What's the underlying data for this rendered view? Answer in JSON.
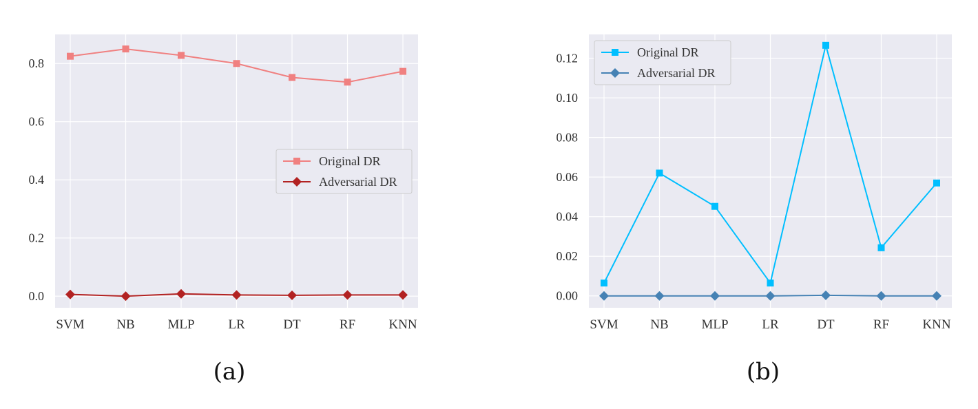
{
  "chart_data": [
    {
      "type": "line",
      "panel_label": "(a)",
      "categories": [
        "SVM",
        "NB",
        "MLP",
        "LR",
        "DT",
        "RF",
        "KNN"
      ],
      "ylim": [
        -0.04,
        0.9
      ],
      "yticks": [
        0.0,
        0.2,
        0.4,
        0.6,
        0.8
      ],
      "ytick_labels": [
        "0.0",
        "0.2",
        "0.4",
        "0.6",
        "0.8"
      ],
      "grid": true,
      "legend_placement": "center-right",
      "background_color": "#eaeaf2",
      "series": [
        {
          "name": "Original DR",
          "marker": "square",
          "color": "#f08080",
          "values": [
            0.825,
            0.85,
            0.828,
            0.8,
            0.752,
            0.736,
            0.773
          ]
        },
        {
          "name": "Adversarial DR",
          "marker": "diamond",
          "color": "#b22222",
          "values": [
            0.006,
            0.0,
            0.008,
            0.004,
            0.003,
            0.004,
            0.004
          ]
        }
      ]
    },
    {
      "type": "line",
      "panel_label": "(b)",
      "categories": [
        "SVM",
        "NB",
        "MLP",
        "LR",
        "DT",
        "RF",
        "KNN"
      ],
      "ylim": [
        -0.006,
        0.132
      ],
      "yticks": [
        0.0,
        0.02,
        0.04,
        0.06,
        0.08,
        0.1,
        0.12
      ],
      "ytick_labels": [
        "0.00",
        "0.02",
        "0.04",
        "0.06",
        "0.08",
        "0.10",
        "0.12"
      ],
      "grid": true,
      "legend_placement": "top-left",
      "background_color": "#eaeaf2",
      "series": [
        {
          "name": "Original DR",
          "marker": "square",
          "color": "#00bfff",
          "values": [
            0.0065,
            0.062,
            0.0452,
            0.0065,
            0.1265,
            0.0243,
            0.057
          ]
        },
        {
          "name": "Adversarial DR",
          "marker": "diamond",
          "color": "#4682b4",
          "values": [
            0.0,
            0.0,
            0.0,
            0.0,
            0.0003,
            0.0,
            0.0
          ]
        }
      ]
    }
  ]
}
